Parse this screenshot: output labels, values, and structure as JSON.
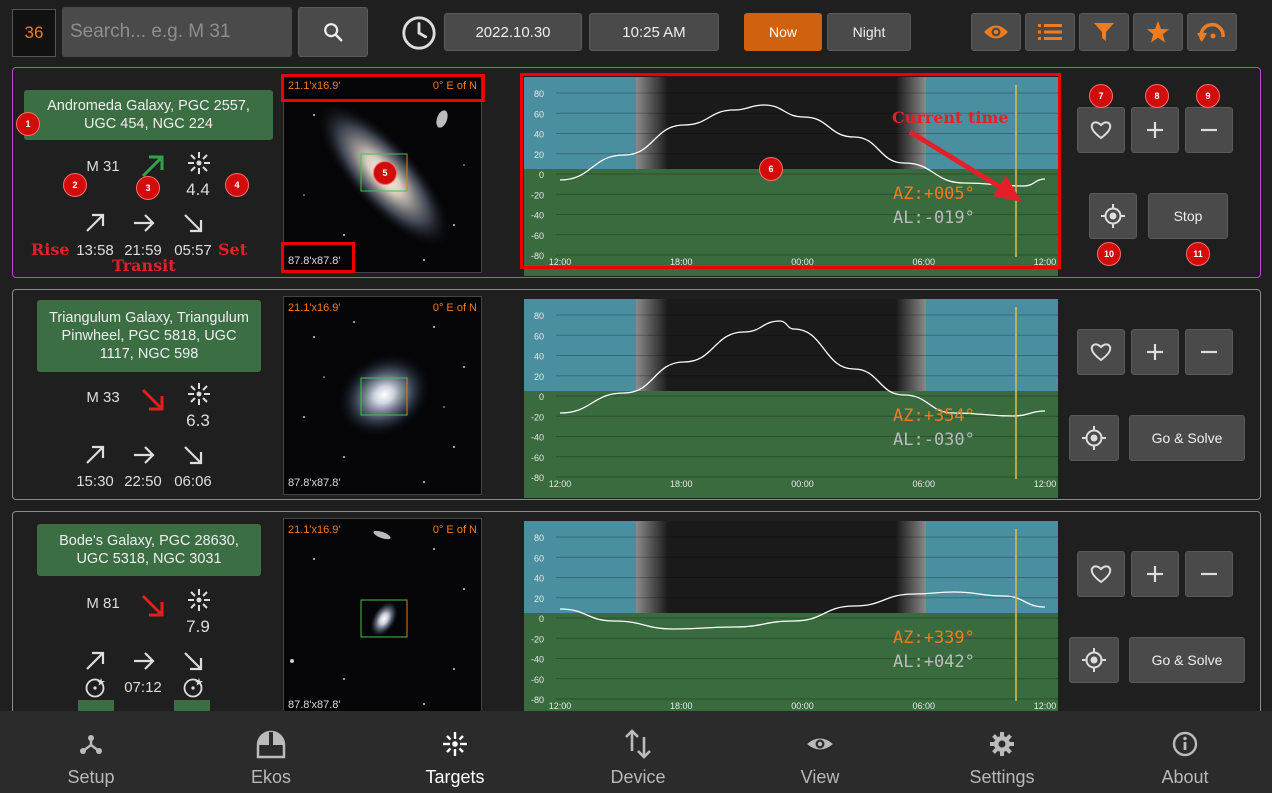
{
  "topbar": {
    "count": "36",
    "search_placeholder": "Search... e.g. M 31",
    "date": "2022.10.30",
    "time": "10:25 AM",
    "now_label": "Now",
    "night_label": "Night"
  },
  "chart_axis": {
    "y_ticks": [
      "80",
      "60",
      "40",
      "20",
      "0",
      "-20",
      "-40",
      "-60",
      "-80"
    ],
    "x_ticks": [
      "12:00",
      "18:00",
      "00:00",
      "06:00",
      "12:00"
    ]
  },
  "targets": [
    {
      "name": "Andromeda Galaxy, PGC 2557, UGC 454, NGC 224",
      "id": "M 31",
      "trend": "up",
      "magnitude": "4.4",
      "rise": "13:58",
      "transit": "21:59",
      "set": "05:57",
      "fov": "21.1'x16.9'",
      "pa": "0° E of N",
      "fov2": "87.8'x87.8'",
      "az": "AZ:+005°",
      "al": "AL:-019°",
      "action": "Stop"
    },
    {
      "name": "Triangulum Galaxy, Triangulum Pinwheel, PGC 5818, UGC 1117, NGC 598",
      "id": "M 33",
      "trend": "down",
      "magnitude": "6.3",
      "rise": "15:30",
      "transit": "22:50",
      "set": "06:06",
      "fov": "21.1'x16.9'",
      "pa": "0° E of N",
      "fov2": "87.8'x87.8'",
      "az": "AZ:+354°",
      "al": "AL:-030°",
      "action": "Go & Solve"
    },
    {
      "name": "Bode's Galaxy, PGC 28630, UGC 5318, NGC 3031",
      "id": "M 81",
      "trend": "down",
      "magnitude": "7.9",
      "transit": "07:12",
      "fov": "21.1'x16.9'",
      "pa": "0° E of N",
      "fov2": "87.8'x87.8'",
      "az": "AZ:+339°",
      "al": "AL:+042°",
      "action": "Go & Solve"
    }
  ],
  "annotations": {
    "badges": [
      "1",
      "2",
      "3",
      "4",
      "5",
      "6",
      "7",
      "8",
      "9",
      "10",
      "11"
    ],
    "rise": "Rise",
    "transit": "Transit",
    "set": "Set",
    "current_time": "Current time"
  },
  "nav": [
    {
      "label": "Setup",
      "icon": "setup-icon"
    },
    {
      "label": "Ekos",
      "icon": "ekos-icon"
    },
    {
      "label": "Targets",
      "icon": "targets-icon"
    },
    {
      "label": "Device",
      "icon": "device-icon"
    },
    {
      "label": "View",
      "icon": "view-icon"
    },
    {
      "label": "Settings",
      "icon": "settings-icon"
    },
    {
      "label": "About",
      "icon": "about-icon"
    }
  ],
  "colors": {
    "accent": "#f07c1e",
    "name_box": "#3c6e44",
    "chart_sky": "#4a8fa0",
    "chart_ground": "#3a6b3f",
    "trend_up": "#35a04a",
    "trend_down": "#e0201c"
  }
}
